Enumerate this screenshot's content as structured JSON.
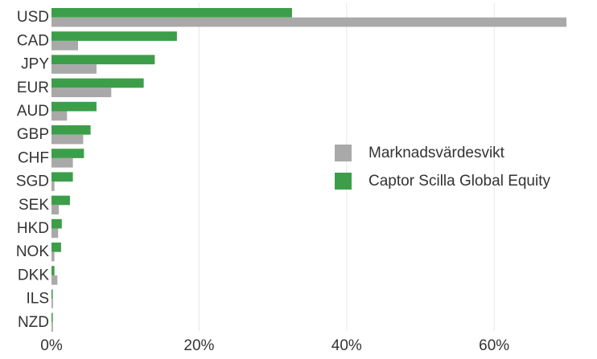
{
  "chart_data": {
    "type": "bar",
    "orientation": "horizontal",
    "categories": [
      "USD",
      "CAD",
      "JPY",
      "EUR",
      "AUD",
      "GBP",
      "CHF",
      "SGD",
      "SEK",
      "HKD",
      "NOK",
      "DKK",
      "ILS",
      "NZD"
    ],
    "series": [
      {
        "name": "Captor Scilla Global Equity",
        "color": "#3d9e4a",
        "values": [
          32.6,
          17.0,
          14.0,
          12.5,
          6.1,
          5.3,
          4.4,
          2.9,
          2.5,
          1.4,
          1.3,
          0.4,
          0.0,
          0.0
        ]
      },
      {
        "name": "Marknadsvärdesvikt",
        "color": "#a9a9a9",
        "values": [
          69.8,
          3.6,
          6.1,
          8.1,
          2.1,
          4.3,
          2.9,
          0.4,
          1.0,
          0.9,
          0.4,
          0.8,
          0.2,
          0.2
        ]
      }
    ],
    "xlim": [
      0,
      72
    ],
    "xticks": [
      0,
      20,
      40,
      60
    ],
    "xtick_labels": [
      "0%",
      "20%",
      "40%",
      "60%"
    ],
    "grid": "vertical",
    "legend_position": "right",
    "legend_order": [
      "Marknadsvärdesvikt",
      "Captor Scilla Global Equity"
    ]
  }
}
